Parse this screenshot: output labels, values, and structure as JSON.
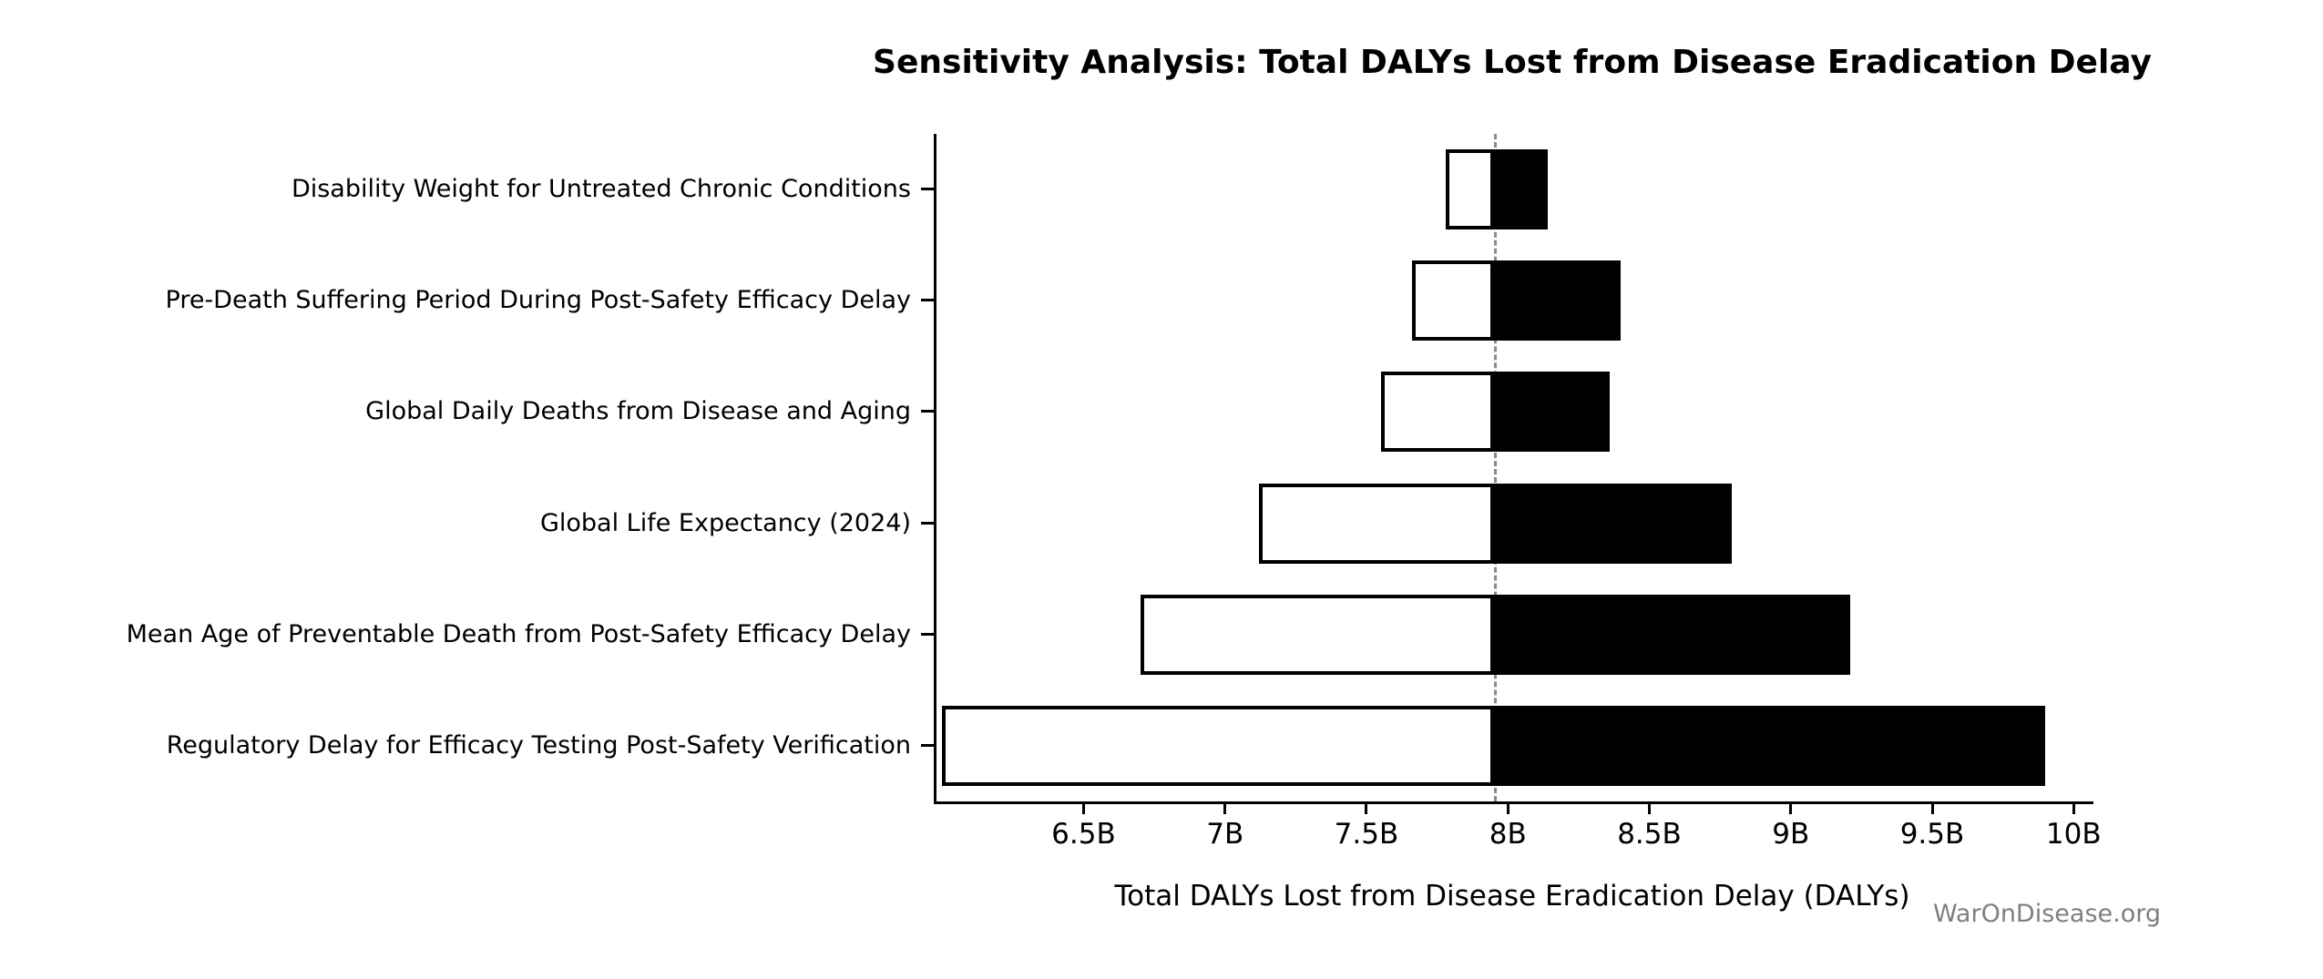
{
  "title": "Sensitivity Analysis: Total DALYs Lost from Disease Eradication Delay",
  "watermark": "WarOnDisease.org",
  "chart_data": {
    "type": "bar",
    "subtype": "tornado",
    "title": "Sensitivity Analysis: Total DALYs Lost from Disease Eradication Delay",
    "xlabel": "Total DALYs Lost from Disease Eradication Delay (DALYs)",
    "ylabel": "",
    "values_unit": "billions of DALYs",
    "baseline": 7.95,
    "xlim": [
      5.98,
      10.07
    ],
    "x_ticks": [
      6.5,
      7,
      7.5,
      8,
      8.5,
      9,
      9.5,
      10
    ],
    "x_tick_labels": [
      "6.5B",
      "7B",
      "7.5B",
      "8B",
      "8.5B",
      "9B",
      "9.5B",
      "10B"
    ],
    "grid": false,
    "legend": "none",
    "categories": [
      "Disability Weight for Untreated Chronic Conditions",
      "Pre-Death Suffering Period During Post-Safety Efficacy Delay",
      "Global Daily Deaths from Disease and Aging",
      "Global Life Expectancy (2024)",
      "Mean Age of Preventable Death from Post-Safety Efficacy Delay",
      "Regulatory Delay for Efficacy Testing Post-Safety Verification"
    ],
    "series": [
      {
        "name": "low",
        "fill": "#ffffff",
        "values": [
          7.78,
          7.66,
          7.55,
          7.12,
          6.7,
          6.0
        ]
      },
      {
        "name": "high",
        "fill": "#000000",
        "values": [
          8.14,
          8.4,
          8.36,
          8.79,
          9.21,
          9.9
        ]
      }
    ],
    "colors": {
      "low_fill": "#ffffff",
      "high_fill": "#000000",
      "bar_edge": "#000000",
      "baseline_line": "#8a8a8a",
      "text": "#000000",
      "watermark": "#7f7f7f"
    }
  }
}
